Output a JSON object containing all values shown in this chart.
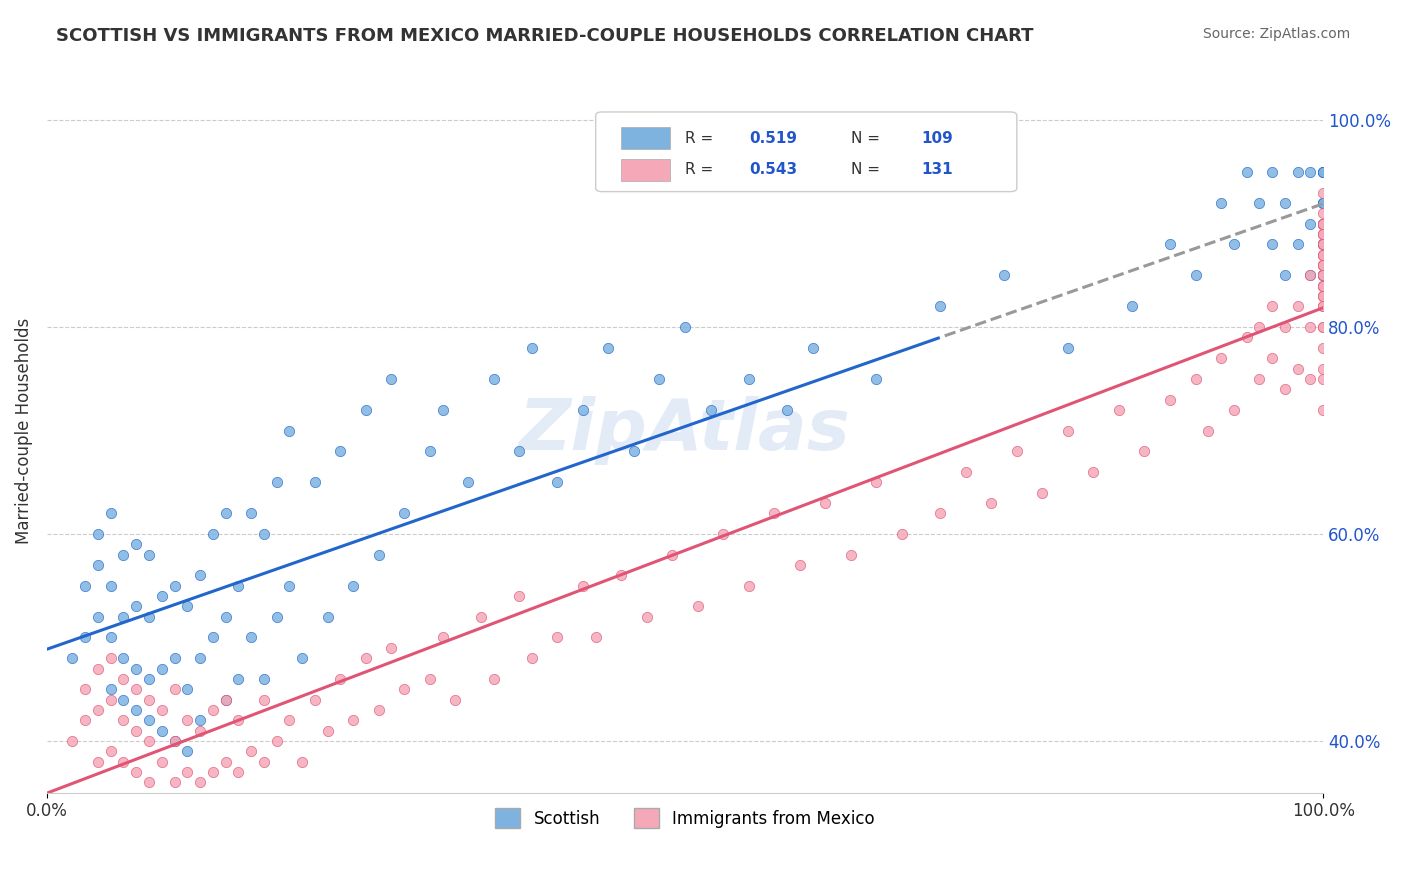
{
  "title": "SCOTTISH VS IMMIGRANTS FROM MEXICO MARRIED-COUPLE HOUSEHOLDS CORRELATION CHART",
  "source": "Source: ZipAtlas.com",
  "xlabel": "",
  "ylabel": "Married-couple Households",
  "xlim": [
    0.0,
    1.0
  ],
  "ylim": [
    0.35,
    1.05
  ],
  "xticks": [
    0.0,
    0.25,
    0.5,
    0.75,
    1.0
  ],
  "xticklabels": [
    "0.0%",
    "",
    "",
    "",
    "100.0%"
  ],
  "ytick_right": [
    0.4,
    0.6,
    0.8,
    1.0
  ],
  "ytick_right_labels": [
    "40.0%",
    "60.0%",
    "80.0%",
    "100.0%"
  ],
  "legend_R1": "0.519",
  "legend_N1": "109",
  "legend_R2": "0.543",
  "legend_N2": "131",
  "blue_color": "#7EB3E0",
  "pink_color": "#F4A8B8",
  "trend_blue": "#2266CC",
  "trend_pink": "#E05575",
  "watermark": "ZipAtlas",
  "watermark_color": "#C8D8F0",
  "blue_scatter_x": [
    0.02,
    0.03,
    0.03,
    0.04,
    0.04,
    0.04,
    0.05,
    0.05,
    0.05,
    0.05,
    0.06,
    0.06,
    0.06,
    0.06,
    0.07,
    0.07,
    0.07,
    0.07,
    0.08,
    0.08,
    0.08,
    0.08,
    0.09,
    0.09,
    0.09,
    0.1,
    0.1,
    0.1,
    0.11,
    0.11,
    0.11,
    0.12,
    0.12,
    0.12,
    0.13,
    0.13,
    0.14,
    0.14,
    0.14,
    0.15,
    0.15,
    0.16,
    0.16,
    0.17,
    0.17,
    0.18,
    0.18,
    0.19,
    0.19,
    0.2,
    0.21,
    0.22,
    0.23,
    0.24,
    0.25,
    0.26,
    0.27,
    0.28,
    0.3,
    0.31,
    0.33,
    0.35,
    0.37,
    0.38,
    0.4,
    0.42,
    0.44,
    0.46,
    0.48,
    0.5,
    0.52,
    0.55,
    0.58,
    0.6,
    0.65,
    0.7,
    0.75,
    0.8,
    0.85,
    0.88,
    0.9,
    0.92,
    0.93,
    0.94,
    0.95,
    0.96,
    0.96,
    0.97,
    0.97,
    0.98,
    0.98,
    0.99,
    0.99,
    0.99,
    1.0,
    1.0,
    1.0,
    1.0,
    1.0,
    1.0,
    1.0,
    1.0,
    1.0,
    1.0,
    1.0,
    1.0,
    1.0,
    1.0,
    1.0
  ],
  "blue_scatter_y": [
    0.48,
    0.5,
    0.55,
    0.52,
    0.57,
    0.6,
    0.45,
    0.5,
    0.55,
    0.62,
    0.44,
    0.48,
    0.52,
    0.58,
    0.43,
    0.47,
    0.53,
    0.59,
    0.42,
    0.46,
    0.52,
    0.58,
    0.41,
    0.47,
    0.54,
    0.4,
    0.48,
    0.55,
    0.39,
    0.45,
    0.53,
    0.42,
    0.48,
    0.56,
    0.5,
    0.6,
    0.44,
    0.52,
    0.62,
    0.46,
    0.55,
    0.5,
    0.62,
    0.46,
    0.6,
    0.52,
    0.65,
    0.55,
    0.7,
    0.48,
    0.65,
    0.52,
    0.68,
    0.55,
    0.72,
    0.58,
    0.75,
    0.62,
    0.68,
    0.72,
    0.65,
    0.75,
    0.68,
    0.78,
    0.65,
    0.72,
    0.78,
    0.68,
    0.75,
    0.8,
    0.72,
    0.75,
    0.72,
    0.78,
    0.75,
    0.82,
    0.85,
    0.78,
    0.82,
    0.88,
    0.85,
    0.92,
    0.88,
    0.95,
    0.92,
    0.88,
    0.95,
    0.85,
    0.92,
    0.88,
    0.95,
    0.85,
    0.9,
    0.95,
    0.88,
    0.92,
    0.95,
    0.85,
    0.9,
    0.92,
    0.88,
    0.95,
    0.9,
    0.85,
    0.92,
    0.88,
    0.95,
    0.9,
    0.85
  ],
  "pink_scatter_x": [
    0.02,
    0.03,
    0.03,
    0.04,
    0.04,
    0.04,
    0.05,
    0.05,
    0.05,
    0.06,
    0.06,
    0.06,
    0.07,
    0.07,
    0.07,
    0.08,
    0.08,
    0.08,
    0.09,
    0.09,
    0.1,
    0.1,
    0.1,
    0.11,
    0.11,
    0.12,
    0.12,
    0.13,
    0.13,
    0.14,
    0.14,
    0.15,
    0.15,
    0.16,
    0.17,
    0.17,
    0.18,
    0.19,
    0.2,
    0.21,
    0.22,
    0.23,
    0.24,
    0.25,
    0.26,
    0.27,
    0.28,
    0.3,
    0.31,
    0.32,
    0.34,
    0.35,
    0.37,
    0.38,
    0.4,
    0.42,
    0.43,
    0.45,
    0.47,
    0.49,
    0.51,
    0.53,
    0.55,
    0.57,
    0.59,
    0.61,
    0.63,
    0.65,
    0.67,
    0.7,
    0.72,
    0.74,
    0.76,
    0.78,
    0.8,
    0.82,
    0.84,
    0.86,
    0.88,
    0.9,
    0.91,
    0.92,
    0.93,
    0.94,
    0.95,
    0.95,
    0.96,
    0.96,
    0.97,
    0.97,
    0.98,
    0.98,
    0.99,
    0.99,
    0.99,
    1.0,
    1.0,
    1.0,
    1.0,
    1.0,
    1.0,
    1.0,
    1.0,
    1.0,
    1.0,
    1.0,
    1.0,
    1.0,
    1.0,
    1.0,
    1.0,
    1.0,
    1.0,
    1.0,
    1.0,
    1.0,
    1.0,
    1.0,
    1.0,
    1.0,
    1.0,
    1.0,
    1.0,
    1.0,
    1.0,
    1.0,
    1.0,
    1.0,
    1.0,
    1.0,
    1.0
  ],
  "pink_scatter_y": [
    0.4,
    0.42,
    0.45,
    0.38,
    0.43,
    0.47,
    0.39,
    0.44,
    0.48,
    0.38,
    0.42,
    0.46,
    0.37,
    0.41,
    0.45,
    0.36,
    0.4,
    0.44,
    0.38,
    0.43,
    0.36,
    0.4,
    0.45,
    0.37,
    0.42,
    0.36,
    0.41,
    0.37,
    0.43,
    0.38,
    0.44,
    0.37,
    0.42,
    0.39,
    0.38,
    0.44,
    0.4,
    0.42,
    0.38,
    0.44,
    0.41,
    0.46,
    0.42,
    0.48,
    0.43,
    0.49,
    0.45,
    0.46,
    0.5,
    0.44,
    0.52,
    0.46,
    0.54,
    0.48,
    0.5,
    0.55,
    0.5,
    0.56,
    0.52,
    0.58,
    0.53,
    0.6,
    0.55,
    0.62,
    0.57,
    0.63,
    0.58,
    0.65,
    0.6,
    0.62,
    0.66,
    0.63,
    0.68,
    0.64,
    0.7,
    0.66,
    0.72,
    0.68,
    0.73,
    0.75,
    0.7,
    0.77,
    0.72,
    0.79,
    0.75,
    0.8,
    0.77,
    0.82,
    0.74,
    0.8,
    0.76,
    0.82,
    0.75,
    0.8,
    0.85,
    0.72,
    0.76,
    0.8,
    0.75,
    0.82,
    0.78,
    0.84,
    0.8,
    0.86,
    0.83,
    0.88,
    0.85,
    0.82,
    0.87,
    0.84,
    0.89,
    0.86,
    0.9,
    0.83,
    0.87,
    0.84,
    0.88,
    0.85,
    0.89,
    0.86,
    0.9,
    0.84,
    0.87,
    0.9,
    0.83,
    0.86,
    0.88,
    0.85,
    0.89,
    0.91,
    0.93
  ]
}
